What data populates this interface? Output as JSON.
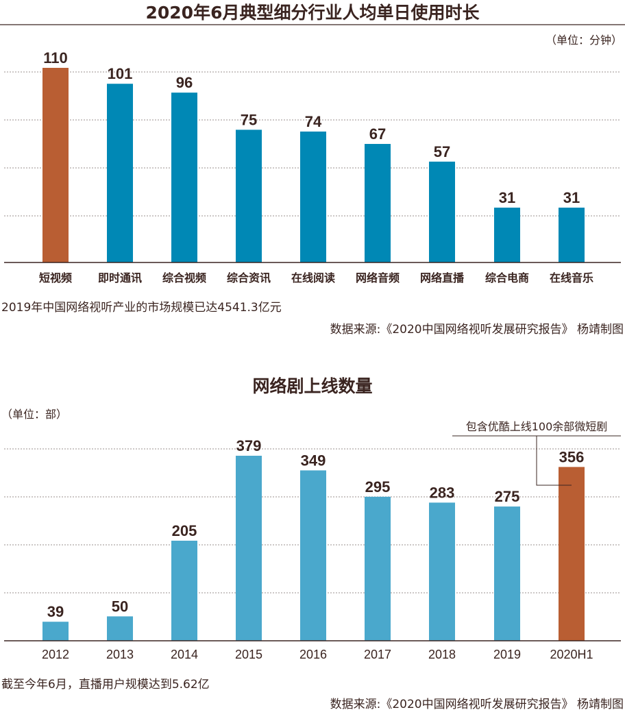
{
  "colors": {
    "highlight": "#b95e33",
    "blue_top": "#0088b5",
    "blue_bottom": "#4aa8cc",
    "text": "#3a2420"
  },
  "chart_data": [
    {
      "type": "bar",
      "title": "2020年6月典型细分行业人均单日使用时长",
      "unit": "（单位：分钟）",
      "categories": [
        "短视频",
        "即时通讯",
        "综合视频",
        "综合资讯",
        "在线阅读",
        "网络音频",
        "网络直播",
        "综合电商",
        "在线音乐"
      ],
      "values": [
        110,
        101,
        96,
        75,
        74,
        67,
        57,
        31,
        31
      ],
      "highlight_index": 0,
      "ylim": [
        0,
        110
      ],
      "grid": true
    },
    {
      "type": "bar",
      "title": "网络剧上线数量",
      "unit": "（单位：部）",
      "categories": [
        "2012",
        "2013",
        "2014",
        "2015",
        "2016",
        "2017",
        "2018",
        "2019",
        "2020H1"
      ],
      "values": [
        39,
        50,
        205,
        379,
        349,
        295,
        283,
        275,
        356
      ],
      "highlight_index": 8,
      "annotation": "包含优酷上线100余部微短剧",
      "ylim": [
        0,
        379
      ],
      "grid": true
    }
  ],
  "notes": {
    "top_note": "2019年中国网络视听产业的市场规模已达4541.3亿元",
    "top_source": "数据来源:《2020中国网络视听发展研究报告》 杨靖制图",
    "bottom_note": "截至今年6月，直播用户规模达到5.62亿",
    "bottom_source": "数据来源:《2020中国网络视听发展研究报告》 杨靖制图"
  }
}
